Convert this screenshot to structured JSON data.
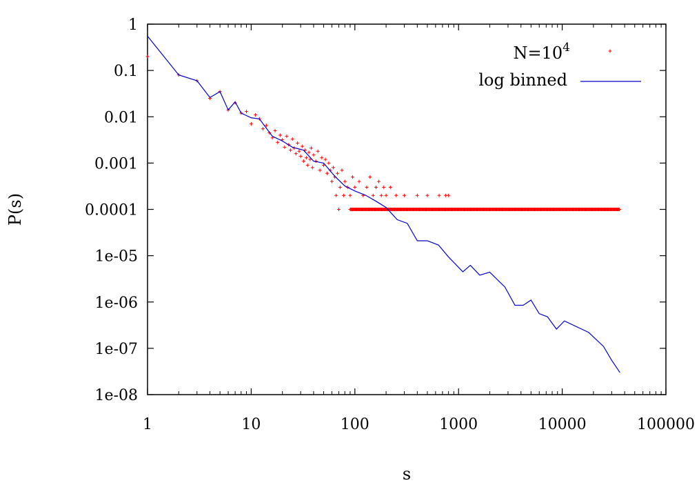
{
  "chart_data": {
    "type": "scatter",
    "title": "",
    "xlabel": "s",
    "ylabel": "P(s)",
    "xscale": "log",
    "yscale": "log",
    "xlim": [
      1,
      100000
    ],
    "ylim": [
      1e-08,
      1
    ],
    "grid": false,
    "legend_position": "top-right",
    "x_ticks": [
      {
        "value": 1,
        "label": "1"
      },
      {
        "value": 10,
        "label": "10"
      },
      {
        "value": 100,
        "label": "100"
      },
      {
        "value": 1000,
        "label": "1000"
      },
      {
        "value": 10000,
        "label": "10000"
      },
      {
        "value": 100000,
        "label": "100000"
      }
    ],
    "y_ticks": [
      {
        "value": 1,
        "label": "1"
      },
      {
        "value": 0.1,
        "label": "0.1"
      },
      {
        "value": 0.01,
        "label": "0.01"
      },
      {
        "value": 0.001,
        "label": "0.001"
      },
      {
        "value": 0.0001,
        "label": "0.0001"
      },
      {
        "value": 1e-05,
        "label": "1e-05"
      },
      {
        "value": 1e-06,
        "label": "1e-06"
      },
      {
        "value": 1e-07,
        "label": "1e-07"
      },
      {
        "value": 1e-08,
        "label": "1e-08"
      }
    ],
    "series": [
      {
        "name": "N=10^4",
        "legend_base": "N=10",
        "legend_sup": "4",
        "style": "points",
        "color": "#ff0000",
        "points": [
          [
            1,
            0.2
          ],
          [
            2,
            0.08
          ],
          [
            3,
            0.06
          ],
          [
            4,
            0.025
          ],
          [
            5,
            0.035
          ],
          [
            6,
            0.014
          ],
          [
            7,
            0.02
          ],
          [
            8,
            0.012
          ],
          [
            9,
            0.013
          ],
          [
            10,
            0.007
          ],
          [
            11,
            0.011
          ],
          [
            12,
            0.009
          ],
          [
            13,
            0.0055
          ],
          [
            14,
            0.0065
          ],
          [
            15,
            0.0045
          ],
          [
            16,
            0.0035
          ],
          [
            17,
            0.005
          ],
          [
            18,
            0.0028
          ],
          [
            19,
            0.004
          ],
          [
            20,
            0.0032
          ],
          [
            21,
            0.0022
          ],
          [
            22,
            0.0038
          ],
          [
            23,
            0.0025
          ],
          [
            24,
            0.0019
          ],
          [
            25,
            0.0033
          ],
          [
            26,
            0.0021
          ],
          [
            27,
            0.0016
          ],
          [
            28,
            0.0027
          ],
          [
            29,
            0.0018
          ],
          [
            30,
            0.0014
          ],
          [
            31,
            0.0023
          ],
          [
            32,
            0.0011
          ],
          [
            33,
            0.0019
          ],
          [
            34,
            0.0013
          ],
          [
            35,
            0.0009
          ],
          [
            36,
            0.0017
          ],
          [
            37,
            0.0012
          ],
          [
            38,
            0.0021
          ],
          [
            39,
            0.0008
          ],
          [
            40,
            0.0015
          ],
          [
            42,
            0.0011
          ],
          [
            44,
            0.0018
          ],
          [
            46,
            0.0007
          ],
          [
            48,
            0.0013
          ],
          [
            50,
            0.0009
          ],
          [
            52,
            0.0012
          ],
          [
            54,
            0.0006
          ],
          [
            56,
            0.001
          ],
          [
            58,
            0.0007
          ],
          [
            60,
            0.0004
          ],
          [
            62,
            0.0008
          ],
          [
            64,
            0.0005
          ],
          [
            66,
            0.0002
          ],
          [
            68,
            0.0006
          ],
          [
            70,
            0.0001
          ],
          [
            72,
            0.0003
          ],
          [
            75,
            0.0007
          ],
          [
            78,
            0.0002
          ],
          [
            80,
            0.0004
          ],
          [
            85,
            0.0003
          ],
          [
            90,
            0.0002
          ],
          [
            95,
            0.0005
          ],
          [
            100,
            0.0003
          ],
          [
            110,
            0.0004
          ],
          [
            120,
            0.0002
          ],
          [
            130,
            0.0003
          ],
          [
            140,
            0.0005
          ],
          [
            150,
            0.0002
          ],
          [
            160,
            0.0003
          ],
          [
            170,
            0.0004
          ],
          [
            180,
            0.0002
          ],
          [
            190,
            0.0003
          ],
          [
            200,
            0.0002
          ],
          [
            220,
            0.0003
          ],
          [
            250,
            0.0002
          ],
          [
            300,
            0.0002
          ],
          [
            400,
            0.0002
          ],
          [
            500,
            0.0002
          ],
          [
            650,
            0.0002
          ],
          [
            750,
            0.0002
          ],
          [
            800,
            0.0002
          ]
        ],
        "floor_value": 0.0001,
        "floor_range": [
          90,
          36000
        ]
      },
      {
        "name": "log binned",
        "style": "line",
        "color": "#0000cc",
        "points": [
          [
            1,
            0.55
          ],
          [
            2,
            0.08
          ],
          [
            3,
            0.06
          ],
          [
            4,
            0.026
          ],
          [
            5,
            0.035
          ],
          [
            6,
            0.014
          ],
          [
            7,
            0.021
          ],
          [
            8,
            0.012
          ],
          [
            10,
            0.0095
          ],
          [
            12,
            0.009
          ],
          [
            16,
            0.0038
          ],
          [
            20,
            0.003
          ],
          [
            25,
            0.0022
          ],
          [
            32,
            0.0019
          ],
          [
            40,
            0.0011
          ],
          [
            50,
            0.001
          ],
          [
            64,
            0.00052
          ],
          [
            80,
            0.00032
          ],
          [
            100,
            0.00025
          ],
          [
            128,
            0.0002
          ],
          [
            160,
            0.00015
          ],
          [
            200,
            0.00011
          ],
          [
            256,
            6e-05
          ],
          [
            320,
            5e-05
          ],
          [
            400,
            2.1e-05
          ],
          [
            500,
            2.1e-05
          ],
          [
            640,
            1.7e-05
          ],
          [
            800,
            9.4e-06
          ],
          [
            1100,
            4.5e-06
          ],
          [
            1300,
            6.2e-06
          ],
          [
            1600,
            3.8e-06
          ],
          [
            2000,
            4.4e-06
          ],
          [
            2800,
            2.1e-06
          ],
          [
            3500,
            8.5e-07
          ],
          [
            4200,
            8.5e-07
          ],
          [
            5000,
            1.1e-06
          ],
          [
            6000,
            5.6e-07
          ],
          [
            7200,
            4.8e-07
          ],
          [
            8800,
            2.6e-07
          ],
          [
            10500,
            3.9e-07
          ],
          [
            18000,
            2.2e-07
          ],
          [
            25000,
            1.1e-07
          ],
          [
            30000,
            5.5e-08
          ],
          [
            36000,
            3e-08
          ]
        ]
      }
    ]
  }
}
